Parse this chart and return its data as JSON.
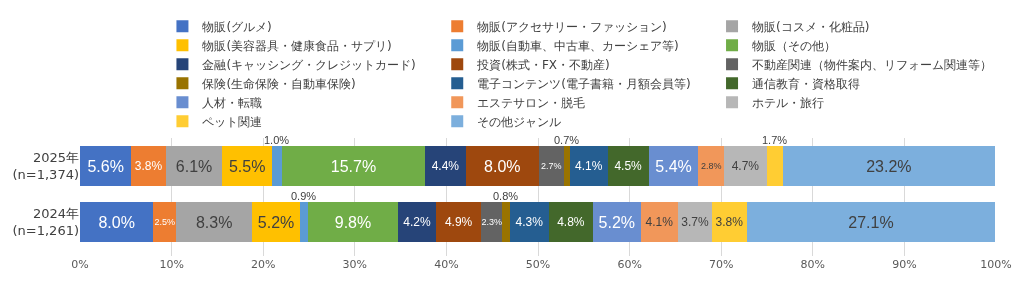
{
  "chart_data": {
    "type": "bar",
    "orientation": "horizontal",
    "stacked": true,
    "grid": "x",
    "legend": "top",
    "categories": [
      "2025年\n(n=1,374)",
      "2024年\n(n=1,261)"
    ],
    "xlim": [
      0,
      100
    ],
    "xticks": [
      {
        "value": 0,
        "label": "0%"
      },
      {
        "value": 10,
        "label": "10%"
      },
      {
        "value": 20,
        "label": "20%"
      },
      {
        "value": 30,
        "label": "30%"
      },
      {
        "value": 40,
        "label": "40%"
      },
      {
        "value": 50,
        "label": "50%"
      },
      {
        "value": 60,
        "label": "60%"
      },
      {
        "value": 70,
        "label": "70%"
      },
      {
        "value": 80,
        "label": "80%"
      },
      {
        "value": 90,
        "label": "90%"
      },
      {
        "value": 100,
        "label": "100%"
      }
    ],
    "series": [
      {
        "name": "物販(グルメ)",
        "color": "#4472c4",
        "values": [
          5.6,
          8.0
        ],
        "value_labels": [
          "5.6%",
          "8.0%"
        ]
      },
      {
        "name": "物販(アクセサリー・ファッション)",
        "color": "#ed7d31",
        "values": [
          3.8,
          2.5
        ],
        "value_labels": [
          "3.8%",
          "2.5%"
        ]
      },
      {
        "name": "物販(コスメ・化粧品)",
        "color": "#a5a5a5",
        "values": [
          6.1,
          8.3
        ],
        "value_labels": [
          "6.1%",
          "8.3%"
        ]
      },
      {
        "name": "物販(美容器具・健康食品・サプリ)",
        "color": "#ffc000",
        "values": [
          5.5,
          5.2
        ],
        "value_labels": [
          "5.5%",
          "5.2%"
        ]
      },
      {
        "name": "物販(自動車、中古車、カーシェア等)",
        "color": "#5b9bd5",
        "values": [
          1.0,
          0.9
        ],
        "value_labels": [
          "1.0%",
          "0.9%"
        ]
      },
      {
        "name": "物販（その他）",
        "color": "#70ad47",
        "values": [
          15.7,
          9.8
        ],
        "value_labels": [
          "15.7%",
          "9.8%"
        ]
      },
      {
        "name": "金融(キャッシング・クレジットカード)",
        "color": "#264478",
        "values": [
          4.4,
          4.2
        ],
        "value_labels": [
          "4.4%",
          "4.2%"
        ]
      },
      {
        "name": "投資(株式・FX・不動産)",
        "color": "#9e480e",
        "values": [
          8.0,
          4.9
        ],
        "value_labels": [
          "8.0%",
          "4.9%"
        ]
      },
      {
        "name": "不動産関連（物件案内、リフォーム関連等）",
        "color": "#636363",
        "values": [
          2.7,
          2.3
        ],
        "value_labels": [
          "2.7%",
          "2.3%"
        ]
      },
      {
        "name": "保険(生命保険・自動車保険)",
        "color": "#997300",
        "values": [
          0.7,
          0.8
        ],
        "value_labels": [
          "0.7%",
          "0.8%"
        ]
      },
      {
        "name": "電子コンテンツ(電子書籍・月額会員等)",
        "color": "#255e91",
        "values": [
          4.1,
          4.3
        ],
        "value_labels": [
          "4.1%",
          "4.3%"
        ]
      },
      {
        "name": "通信教育・資格取得",
        "color": "#43682b",
        "values": [
          4.5,
          4.8
        ],
        "value_labels": [
          "4.5%",
          "4.8%"
        ]
      },
      {
        "name": "人材・転職",
        "color": "#698ed0",
        "values": [
          5.4,
          5.2
        ],
        "value_labels": [
          "5.4%",
          "5.2%"
        ]
      },
      {
        "name": "エステサロン・脱毛",
        "color": "#f1975a",
        "values": [
          2.8,
          4.1
        ],
        "value_labels": [
          "2.8%",
          "4.1%"
        ]
      },
      {
        "name": "ホテル・旅行",
        "color": "#b7b7b7",
        "values": [
          4.7,
          3.7
        ],
        "value_labels": [
          "4.7%",
          "3.7%"
        ]
      },
      {
        "name": "ペット関連",
        "color": "#ffcd33",
        "values": [
          1.7,
          3.8
        ],
        "value_labels": [
          "1.7%",
          "3.8%"
        ]
      },
      {
        "name": "その他ジャンル",
        "color": "#7cafdd",
        "values": [
          23.2,
          27.1
        ],
        "value_labels": [
          "23.2%",
          "27.1%"
        ]
      }
    ]
  }
}
